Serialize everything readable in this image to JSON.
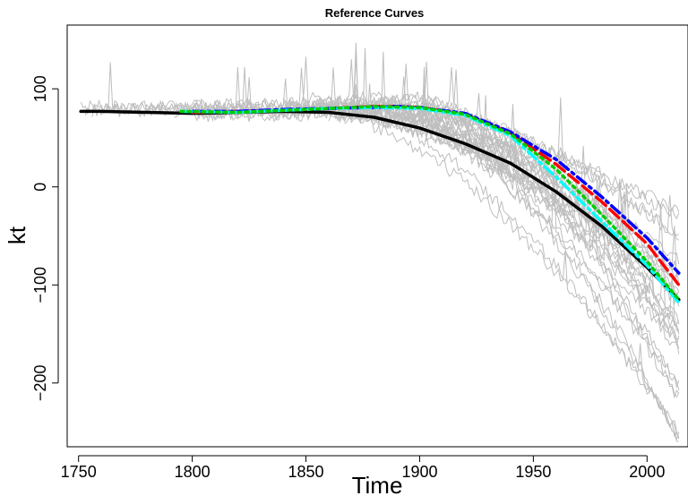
{
  "chart_data": {
    "type": "line",
    "title": "Reference Curves",
    "xlabel": "Time",
    "ylabel": "kt",
    "xlim": [
      1745,
      2018
    ],
    "ylim": [
      -265,
      165
    ],
    "x_ticks": [
      1750,
      1800,
      1850,
      1900,
      1950,
      2000
    ],
    "x_tick_labels": [
      "1750",
      "1800",
      "1850",
      "1900",
      "1950",
      "2000"
    ],
    "y_ticks": [
      -200,
      -100,
      0,
      100
    ],
    "y_tick_labels": [
      "−200",
      "−100",
      "0",
      "100"
    ],
    "grid": false,
    "legend": "none",
    "background_series_color": "#bebebe",
    "background_series_count": 30,
    "series": [
      {
        "color": "#000000",
        "style": "solid",
        "x": [
          1751,
          1760,
          1780,
          1800,
          1820,
          1840,
          1860,
          1880,
          1900,
          1920,
          1940,
          1960,
          1980,
          2000,
          2014
        ],
        "values": [
          77,
          77,
          76,
          75,
          76,
          77,
          76,
          71,
          60,
          44,
          24,
          -5,
          -40,
          -82,
          -115
        ]
      },
      {
        "color": "#ff0000",
        "style": "dashed",
        "x": [
          1800,
          1820,
          1840,
          1860,
          1880,
          1890,
          1900,
          1920,
          1940,
          1960,
          1980,
          2000,
          2014
        ],
        "values": [
          76,
          77,
          78,
          80,
          82,
          82,
          81,
          74,
          55,
          23,
          -15,
          -58,
          -100
        ]
      },
      {
        "color": "#0000ff",
        "style": "dotdash",
        "x": [
          1800,
          1820,
          1840,
          1860,
          1880,
          1890,
          1900,
          1920,
          1940,
          1960,
          1980,
          2000,
          2014
        ],
        "values": [
          77,
          77,
          79,
          80,
          81,
          82,
          81,
          75,
          56,
          28,
          -10,
          -52,
          -88
        ]
      },
      {
        "color": "#00ffff",
        "style": "dotdash",
        "x": [
          1795,
          1820,
          1840,
          1860,
          1880,
          1900,
          1920,
          1940,
          1960,
          1980,
          2000,
          2014
        ],
        "values": [
          77,
          76,
          78,
          80,
          81,
          80,
          73,
          52,
          10,
          -35,
          -80,
          -118
        ]
      },
      {
        "color": "#00cd00",
        "style": "dotted",
        "x": [
          1795,
          1820,
          1840,
          1860,
          1880,
          1900,
          1920,
          1940,
          1960,
          1980,
          2000,
          2014
        ],
        "values": [
          77,
          76,
          78,
          80,
          82,
          81,
          74,
          54,
          18,
          -28,
          -76,
          -115
        ]
      }
    ]
  }
}
